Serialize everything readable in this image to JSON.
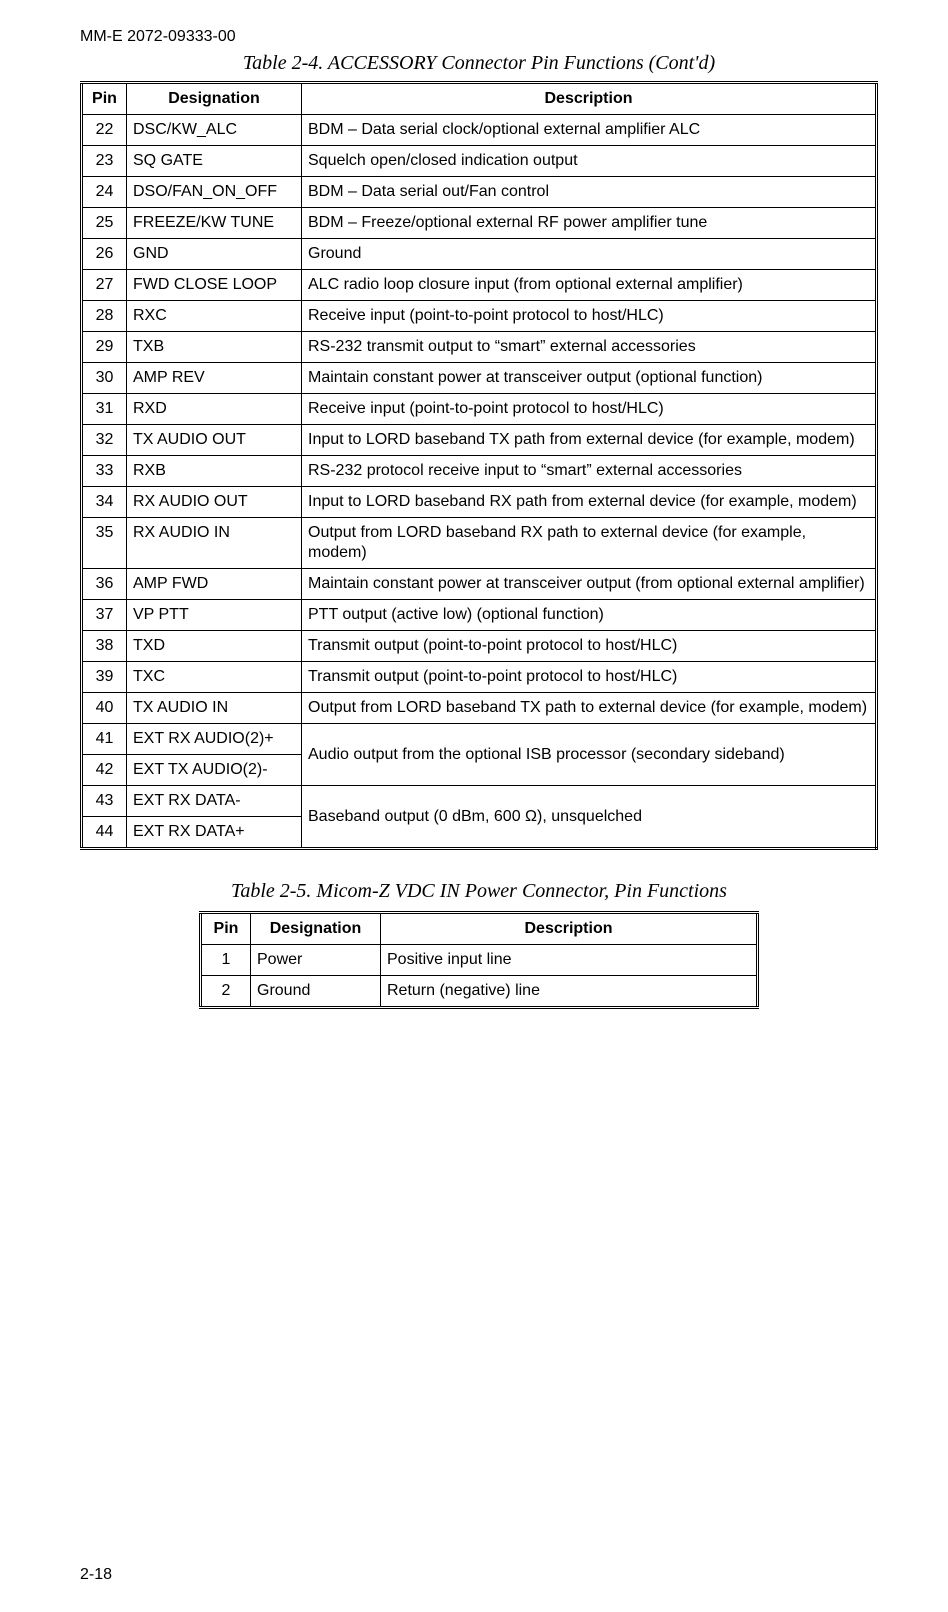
{
  "doc_id": "MM-E 2072-09333-00",
  "page_number": "2-18",
  "table1": {
    "caption": "Table 2-4. ACCESSORY Connector Pin Functions (Cont'd)",
    "headers": {
      "pin": "Pin",
      "desig": "Designation",
      "desc": "Description"
    },
    "rows": [
      {
        "pin": "22",
        "desig": "DSC/KW_ALC",
        "desc": "BDM – Data serial clock/optional external amplifier ALC"
      },
      {
        "pin": "23",
        "desig": "SQ GATE",
        "desc": "Squelch open/closed indication output"
      },
      {
        "pin": "24",
        "desig": "DSO/FAN_ON_OFF",
        "desc": "BDM – Data serial out/Fan control"
      },
      {
        "pin": "25",
        "desig": "FREEZE/KW TUNE",
        "desc": "BDM – Freeze/optional external RF power amplifier tune"
      },
      {
        "pin": "26",
        "desig": "GND",
        "desc": "Ground"
      },
      {
        "pin": "27",
        "desig": "FWD CLOSE LOOP",
        "desc": "ALC radio loop closure input (from optional external amplifier)"
      },
      {
        "pin": "28",
        "desig": "RXC",
        "desc": "Receive input (point-to-point protocol to host/HLC)"
      },
      {
        "pin": "29",
        "desig": "TXB",
        "desc": "RS-232 transmit output to “smart” external accessories"
      },
      {
        "pin": "30",
        "desig": "AMP REV",
        "desc": "Maintain constant power at transceiver output (optional function)"
      },
      {
        "pin": "31",
        "desig": "RXD",
        "desc": "Receive input (point-to-point protocol to host/HLC)"
      },
      {
        "pin": "32",
        "desig": "TX AUDIO OUT",
        "desc": "Input to LORD baseband TX path from external device (for example, modem)"
      },
      {
        "pin": "33",
        "desig": "RXB",
        "desc": "RS-232 protocol receive input to “smart” external accessories"
      },
      {
        "pin": "34",
        "desig": "RX AUDIO OUT",
        "desc": "Input to LORD baseband RX path from external device (for example, modem)"
      },
      {
        "pin": "35",
        "desig": "RX AUDIO IN",
        "desc": "Output from LORD baseband RX path to external device (for example, modem)"
      },
      {
        "pin": "36",
        "desig": "AMP FWD",
        "desc": "Maintain constant power at transceiver output (from optional external amplifier)"
      },
      {
        "pin": "37",
        "desig": "VP PTT",
        "desc": "PTT output (active low) (optional function)"
      },
      {
        "pin": "38",
        "desig": "TXD",
        "desc": "Transmit output (point-to-point protocol to host/HLC)"
      },
      {
        "pin": "39",
        "desig": "TXC",
        "desc": "Transmit output (point-to-point protocol to host/HLC)"
      },
      {
        "pin": "40",
        "desig": "TX AUDIO IN",
        "desc": "Output from LORD baseband TX path to external device (for example, modem)"
      },
      {
        "pin": "41",
        "desig": "EXT RX AUDIO(2)+",
        "desc_merge": "Audio output from the optional ISB processor (secondary sideband)"
      },
      {
        "pin": "42",
        "desig": "EXT TX AUDIO(2)-"
      },
      {
        "pin": "43",
        "desig": "EXT RX DATA-",
        "desc_merge": "Baseband output (0 dBm, 600 Ω), unsquelched"
      },
      {
        "pin": "44",
        "desig": "EXT RX DATA+"
      }
    ]
  },
  "table2": {
    "caption": "Table 2-5. Micom-Z VDC IN Power Connector, Pin Functions",
    "headers": {
      "pin": "Pin",
      "desig": "Designation",
      "desc": "Description"
    },
    "rows": [
      {
        "pin": "1",
        "desig": "Power",
        "desc": "Positive input line"
      },
      {
        "pin": "2",
        "desig": "Ground",
        "desc": "Return (negative) line"
      }
    ]
  }
}
